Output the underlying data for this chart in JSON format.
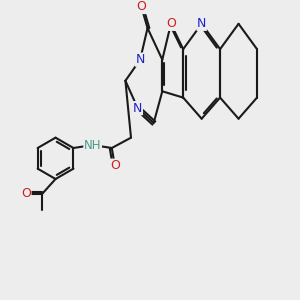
{
  "bg_color": "#ededee",
  "bond_color": "#1a1a1a",
  "atom_colors": {
    "N": "#2020cc",
    "O": "#cc2020",
    "H": "#4a9a8a"
  },
  "line_width": 1.5,
  "font_size": 9
}
